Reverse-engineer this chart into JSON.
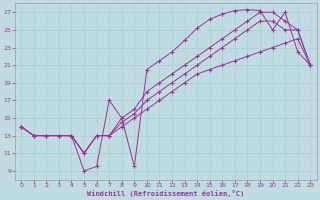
{
  "xlabel": "Windchill (Refroidissement éolien,°C)",
  "xlim": [
    -0.5,
    23.5
  ],
  "ylim": [
    8,
    28
  ],
  "xticks": [
    0,
    1,
    2,
    3,
    4,
    5,
    6,
    7,
    8,
    9,
    10,
    11,
    12,
    13,
    14,
    15,
    16,
    17,
    18,
    19,
    20,
    21,
    22,
    23
  ],
  "yticks": [
    9,
    11,
    13,
    15,
    17,
    19,
    21,
    23,
    25,
    27
  ],
  "bg_color": "#c0dce0",
  "line_color": "#993399",
  "grid_color": "#b0ccd0",
  "lines": [
    {
      "x": [
        0,
        1,
        2,
        3,
        4,
        5,
        6,
        7,
        8,
        9,
        10,
        11,
        12,
        13,
        14,
        15,
        16,
        17,
        18,
        19,
        20,
        21,
        22,
        23
      ],
      "y": [
        14,
        13,
        13,
        13,
        13,
        9,
        9.5,
        17,
        15,
        9.5,
        20.5,
        21.5,
        22.5,
        23.8,
        25.2,
        26.2,
        26.8,
        27.2,
        27.3,
        27.2,
        25.0,
        27.0,
        22.5,
        21.0
      ]
    },
    {
      "x": [
        0,
        1,
        2,
        3,
        4,
        5,
        6,
        7,
        8,
        9,
        10,
        11,
        12,
        13,
        14,
        15,
        16,
        17,
        18,
        19,
        20,
        21,
        22,
        23
      ],
      "y": [
        14,
        13,
        13,
        13,
        13,
        11,
        13,
        13,
        15,
        16,
        18,
        19,
        20,
        21,
        22,
        23,
        24,
        25,
        26,
        27,
        27,
        26,
        25,
        21.0
      ]
    },
    {
      "x": [
        0,
        1,
        2,
        3,
        4,
        5,
        6,
        7,
        8,
        9,
        10,
        11,
        12,
        13,
        14,
        15,
        16,
        17,
        18,
        19,
        20,
        21,
        22,
        23
      ],
      "y": [
        14,
        13,
        13,
        13,
        13,
        11,
        13,
        13,
        14.5,
        15.5,
        17,
        18,
        19,
        20,
        21,
        22,
        23,
        24,
        25,
        26,
        26,
        25,
        25,
        21.0
      ]
    },
    {
      "x": [
        0,
        1,
        2,
        3,
        4,
        5,
        6,
        7,
        8,
        9,
        10,
        11,
        12,
        13,
        14,
        15,
        16,
        17,
        18,
        19,
        20,
        21,
        22,
        23
      ],
      "y": [
        14,
        13,
        13,
        13,
        13,
        11,
        13,
        13,
        14,
        15,
        16,
        17,
        18,
        19,
        20,
        20.5,
        21,
        21.5,
        22,
        22.5,
        23,
        23.5,
        24,
        21.0
      ]
    }
  ]
}
